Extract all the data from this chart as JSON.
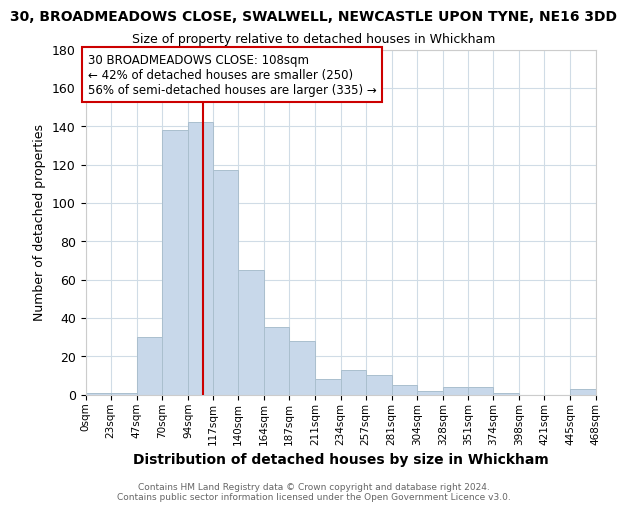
{
  "title": "30, BROADMEADOWS CLOSE, SWALWELL, NEWCASTLE UPON TYNE, NE16 3DD",
  "subtitle": "Size of property relative to detached houses in Whickham",
  "xlabel": "Distribution of detached houses by size in Whickham",
  "ylabel": "Number of detached properties",
  "bar_color": "#c8d8ea",
  "bar_edge_color": "#aabfce",
  "bin_labels": [
    "0sqm",
    "23sqm",
    "47sqm",
    "70sqm",
    "94sqm",
    "117sqm",
    "140sqm",
    "164sqm",
    "187sqm",
    "211sqm",
    "234sqm",
    "257sqm",
    "281sqm",
    "304sqm",
    "328sqm",
    "351sqm",
    "374sqm",
    "398sqm",
    "421sqm",
    "445sqm",
    "468sqm"
  ],
  "bin_edges": [
    0,
    23,
    47,
    70,
    94,
    117,
    140,
    164,
    187,
    211,
    234,
    257,
    281,
    304,
    328,
    351,
    374,
    398,
    421,
    445,
    468
  ],
  "bar_heights": [
    1,
    1,
    30,
    138,
    142,
    117,
    65,
    35,
    28,
    8,
    13,
    10,
    5,
    2,
    4,
    4,
    1,
    0,
    0,
    3
  ],
  "vline_x": 108,
  "vline_color": "#cc0000",
  "ylim": [
    0,
    180
  ],
  "yticks": [
    0,
    20,
    40,
    60,
    80,
    100,
    120,
    140,
    160,
    180
  ],
  "annotation_title": "30 BROADMEADOWS CLOSE: 108sqm",
  "annotation_line1": "← 42% of detached houses are smaller (250)",
  "annotation_line2": "56% of semi-detached houses are larger (335) →",
  "annotation_box_color": "#ffffff",
  "annotation_box_edge": "#cc0000",
  "footer_line1": "Contains HM Land Registry data © Crown copyright and database right 2024.",
  "footer_line2": "Contains public sector information licensed under the Open Government Licence v3.0.",
  "background_color": "#ffffff",
  "grid_color": "#d0dce6"
}
